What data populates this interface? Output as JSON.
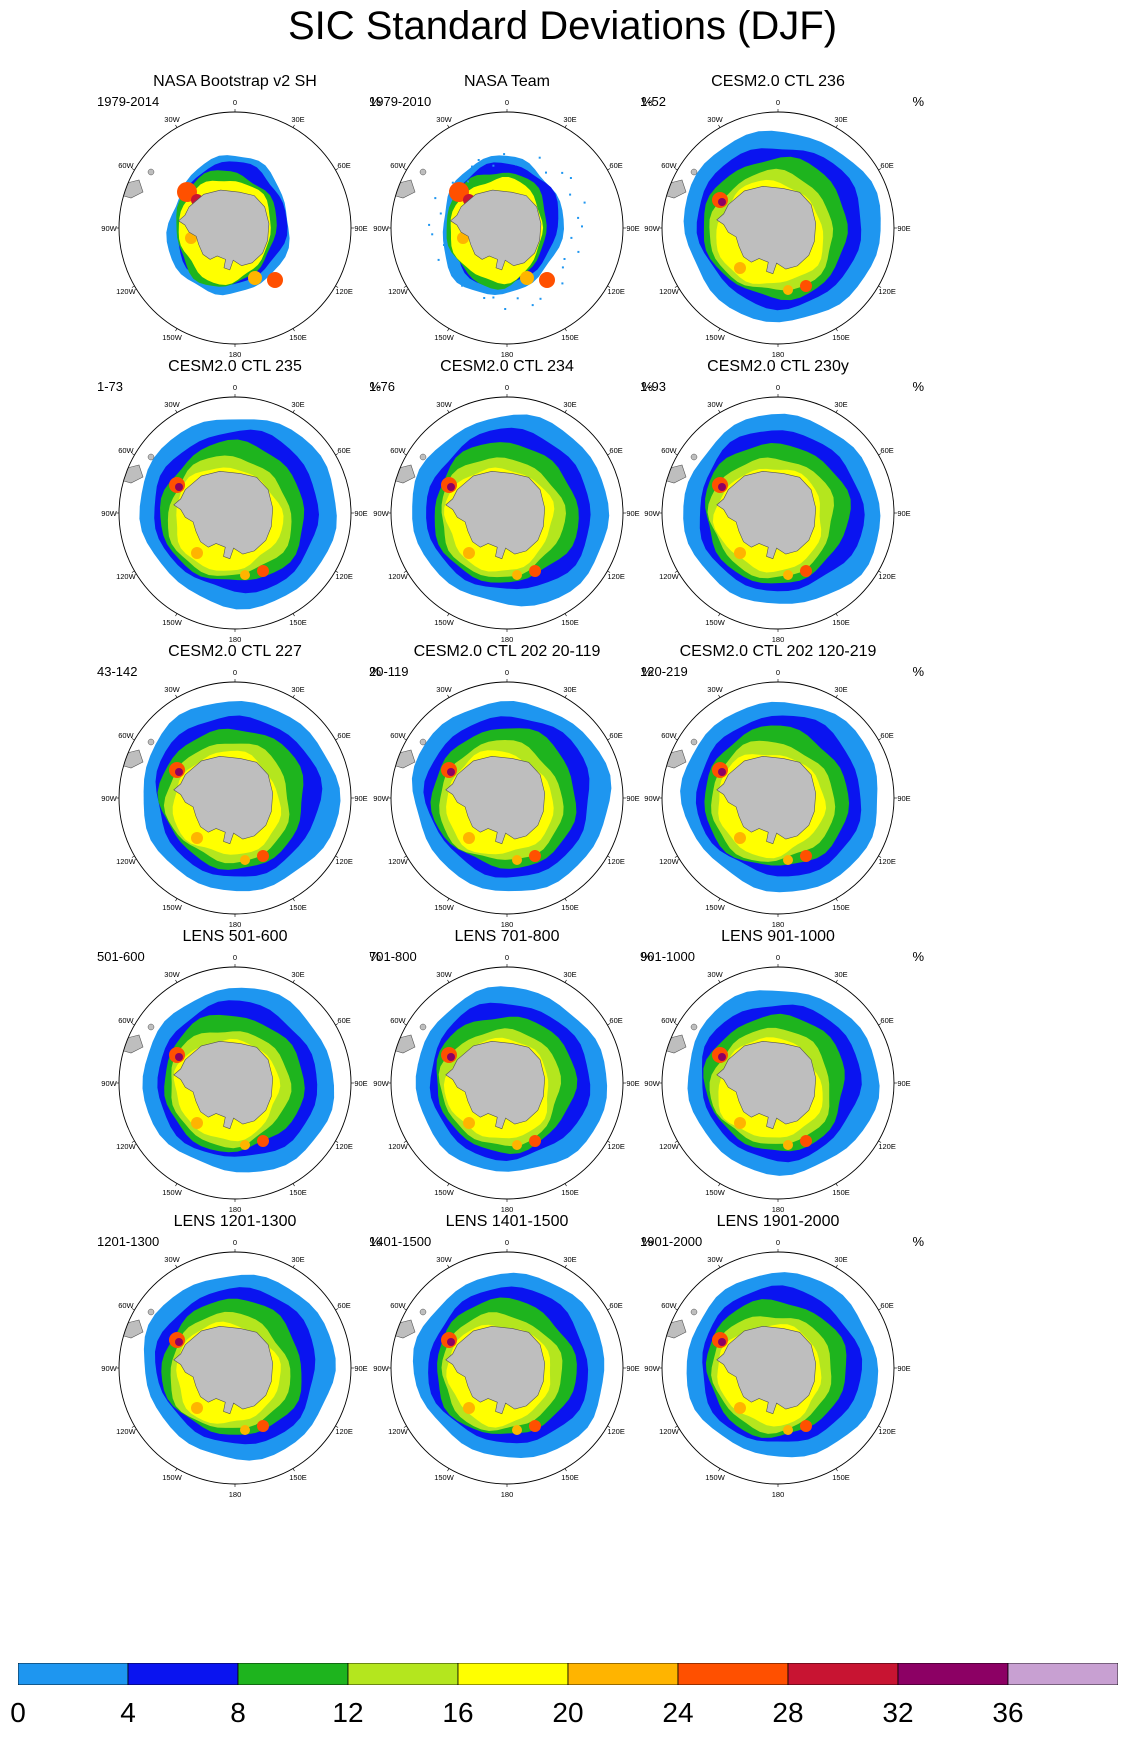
{
  "title": "SIC Standard Deviations (DJF)",
  "unit": "%",
  "lon_labels": [
    "0",
    "30E",
    "60E",
    "90E",
    "120E",
    "150E",
    "180",
    "150W",
    "120W",
    "90W",
    "60W",
    "30W"
  ],
  "panels": [
    {
      "title": "NASA Bootstrap v2 SH",
      "period": "1979-2014",
      "style": "obs"
    },
    {
      "title": "NASA Team",
      "period": "1979-2010",
      "style": "obs2"
    },
    {
      "title": "CESM2.0 CTL 236",
      "period": "1-52",
      "style": "model"
    },
    {
      "title": "CESM2.0 CTL 235",
      "period": "1-73",
      "style": "model"
    },
    {
      "title": "CESM2.0 CTL 234",
      "period": "1-76",
      "style": "model"
    },
    {
      "title": "CESM2.0 CTL 230y",
      "period": "1-93",
      "style": "model"
    },
    {
      "title": "CESM2.0 CTL 227",
      "period": "43-142",
      "style": "model"
    },
    {
      "title": "CESM2.0 CTL 202 20-119",
      "period": "20-119",
      "style": "model"
    },
    {
      "title": "CESM2.0 CTL 202 120-219",
      "period": "120-219",
      "style": "model"
    },
    {
      "title": "LENS 501-600",
      "period": "501-600",
      "style": "lens"
    },
    {
      "title": "LENS 701-800",
      "period": "701-800",
      "style": "lens"
    },
    {
      "title": "LENS 901-1000",
      "period": "901-1000",
      "style": "lens"
    },
    {
      "title": "LENS 1201-1300",
      "period": "1201-1300",
      "style": "lens"
    },
    {
      "title": "LENS 1401-1500",
      "period": "1401-1500",
      "style": "lens"
    },
    {
      "title": "LENS 1901-2000",
      "period": "1901-2000",
      "style": "lens"
    }
  ],
  "colorbar": {
    "levels": [
      "0",
      "4",
      "8",
      "12",
      "16",
      "20",
      "24",
      "28",
      "32",
      "36"
    ],
    "colors": [
      "#1e96f0",
      "#0a14f0",
      "#1eb41e",
      "#b4e61e",
      "#ffff00",
      "#ffb400",
      "#ff5000",
      "#c81432",
      "#8c0064",
      "#c8a0d2"
    ]
  },
  "land_color": "#bebebe"
}
